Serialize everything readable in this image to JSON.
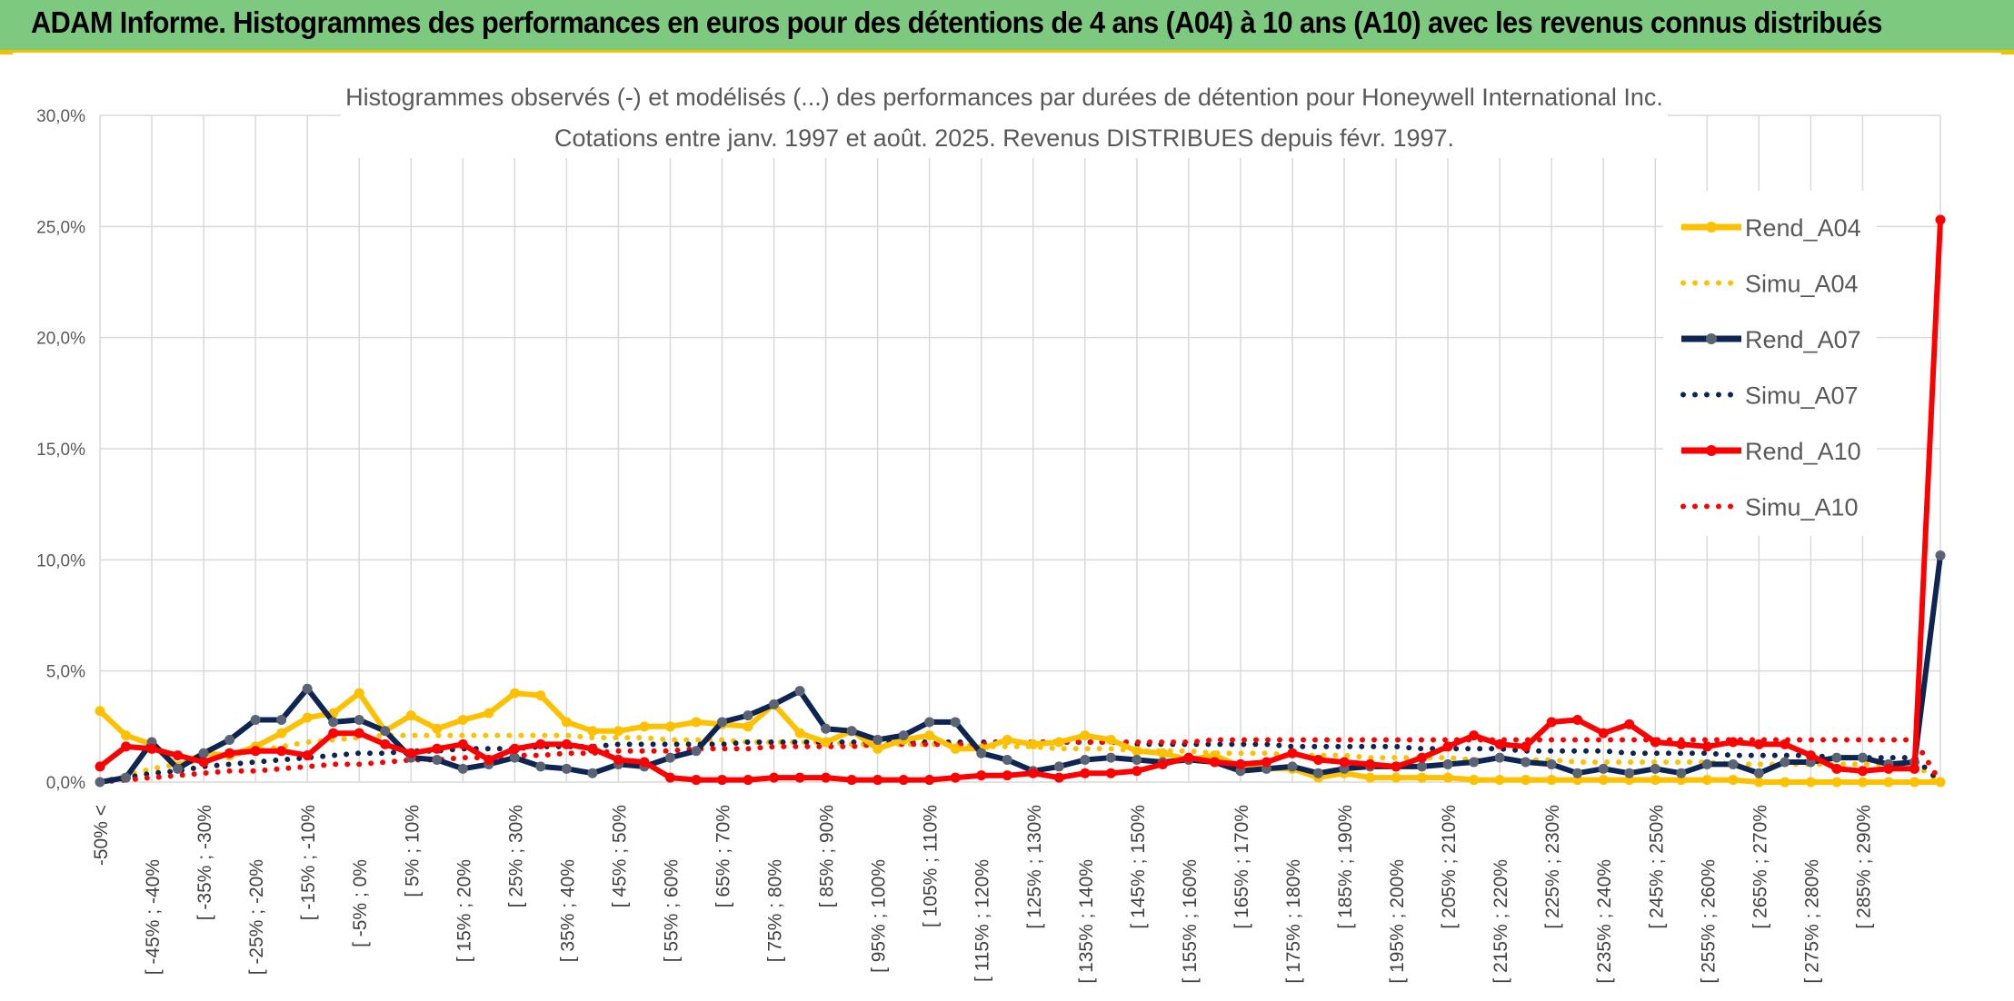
{
  "header": {
    "title": "ADAM Informe. Histogrammes des performances en euros pour des détentions de 4 ans (A04) à 10 ans (A10) avec les revenus connus distribués"
  },
  "colors": {
    "banner": "#7dc97f",
    "accent": "#f2c200",
    "A04": "#ffc000",
    "A07": "#0e2452",
    "A10": "#ff0000",
    "grid": "#d9d9d9",
    "text": "#595959"
  },
  "chart_data": {
    "type": "line",
    "title_line1": "Histogrammes observés (-) et modélisés (...) des performances par durées de détention pour Honeywell International Inc.",
    "title_line2": "Cotations entre janv. 1997 et août. 2025. Revenus DISTRIBUES depuis févr. 1997.",
    "ylim": [
      0,
      30
    ],
    "y_ticks": [
      "0,0%",
      "5,0%",
      "10,0%",
      "15,0%",
      "20,0%",
      "25,0%",
      "30,0%"
    ],
    "grid": true,
    "legend_position": "right",
    "x_tick_labels": [
      "-50% <",
      "[ -45% ; -40%",
      "[ -35% ; -30%",
      "[ -25% ; -20%",
      "[ -15% ; -10%",
      "[ -5% ; 0%",
      "[ 5% ; 10%",
      "[ 15% ; 20%",
      "[ 25% ; 30%",
      "[ 35% ; 40%",
      "[ 45% ; 50%",
      "[ 55% ; 60%",
      "[ 65% ; 70%",
      "[ 75% ; 80%",
      "[ 85% ; 90%",
      "[ 95% ; 100%",
      "[ 105% ; 110%",
      "[ 115% ; 120%",
      "[ 125% ; 130%",
      "[ 135% ; 140%",
      "[ 145% ; 150%",
      "[ 155% ; 160%",
      "[ 165% ; 170%",
      "[ 175% ; 180%",
      "[ 185% ; 190%",
      "[ 195% ; 200%",
      "[ 205% ; 210%",
      "[ 215% ; 220%",
      "[ 225% ; 230%",
      "[ 235% ; 240%",
      "[ 245% ; 250%",
      "[ 255% ; 260%",
      "[ 265% ; 270%",
      "[ 275% ; 280%",
      "[ 285% ; 290%"
    ],
    "series": [
      {
        "name": "Rend_A04",
        "style": "solid",
        "color": "#ffc000",
        "values": [
          3.2,
          2.1,
          1.7,
          0.7,
          1.3,
          1.2,
          1.6,
          2.2,
          2.9,
          3.1,
          4.0,
          2.3,
          3.0,
          2.4,
          2.8,
          3.1,
          4.0,
          3.9,
          2.7,
          2.3,
          2.3,
          2.5,
          2.5,
          2.7,
          2.6,
          2.5,
          3.5,
          2.2,
          1.8,
          2.3,
          1.5,
          1.9,
          2.1,
          1.5,
          1.5,
          1.9,
          1.7,
          1.8,
          2.1,
          1.9,
          1.4,
          1.3,
          1.0,
          1.2,
          0.7,
          0.6,
          0.6,
          0.2,
          0.4,
          0.2,
          0.2,
          0.2,
          0.2,
          0.1,
          0.1,
          0.1,
          0.1,
          0.1,
          0.1,
          0.1,
          0.1,
          0.1,
          0.1,
          0.1,
          0.0,
          0.0,
          0.0,
          0.0,
          0.0,
          0.0,
          0.0,
          0.0
        ]
      },
      {
        "name": "Simu_A04",
        "style": "dotted",
        "color": "#ffc000",
        "values": [
          0.0,
          0.3,
          0.6,
          0.8,
          1.0,
          1.2,
          1.4,
          1.6,
          1.8,
          1.9,
          2.0,
          2.1,
          2.1,
          2.1,
          2.1,
          2.1,
          2.1,
          2.1,
          2.1,
          2.0,
          2.0,
          2.0,
          1.9,
          1.9,
          1.9,
          1.8,
          1.8,
          1.8,
          1.8,
          1.7,
          1.7,
          1.7,
          1.7,
          1.7,
          1.6,
          1.6,
          1.6,
          1.5,
          1.5,
          1.5,
          1.4,
          1.4,
          1.4,
          1.3,
          1.3,
          1.3,
          1.2,
          1.2,
          1.2,
          1.1,
          1.1,
          1.1,
          1.1,
          1.0,
          1.0,
          1.0,
          1.0,
          0.9,
          0.9,
          0.9,
          0.9,
          0.9,
          0.9,
          0.8,
          0.8,
          0.8,
          0.8,
          0.8,
          0.8,
          0.8,
          0.8,
          0.0
        ]
      },
      {
        "name": "Rend_A07",
        "style": "solid",
        "color": "#0e2452",
        "values": [
          0.0,
          0.2,
          1.8,
          0.6,
          1.3,
          1.9,
          2.8,
          2.8,
          4.2,
          2.7,
          2.8,
          2.3,
          1.1,
          1.0,
          0.6,
          0.8,
          1.1,
          0.7,
          0.6,
          0.4,
          0.8,
          0.7,
          1.1,
          1.4,
          2.7,
          3.0,
          3.5,
          4.1,
          2.4,
          2.3,
          1.9,
          2.1,
          2.7,
          2.7,
          1.3,
          1.0,
          0.5,
          0.7,
          1.0,
          1.1,
          1.0,
          0.9,
          1.0,
          0.9,
          0.5,
          0.6,
          0.7,
          0.4,
          0.6,
          0.7,
          0.7,
          0.7,
          0.8,
          0.9,
          1.1,
          0.9,
          0.8,
          0.4,
          0.6,
          0.4,
          0.6,
          0.4,
          0.8,
          0.8,
          0.4,
          0.9,
          0.9,
          1.1,
          1.1,
          0.8,
          0.9,
          10.2
        ]
      },
      {
        "name": "Simu_A07",
        "style": "dotted",
        "color": "#0e2452",
        "values": [
          0.0,
          0.2,
          0.4,
          0.5,
          0.7,
          0.8,
          0.9,
          1.0,
          1.1,
          1.2,
          1.3,
          1.3,
          1.4,
          1.4,
          1.5,
          1.5,
          1.5,
          1.6,
          1.6,
          1.6,
          1.7,
          1.7,
          1.7,
          1.7,
          1.7,
          1.8,
          1.8,
          1.8,
          1.8,
          1.8,
          1.8,
          1.8,
          1.8,
          1.8,
          1.8,
          1.8,
          1.8,
          1.8,
          1.8,
          1.8,
          1.7,
          1.7,
          1.7,
          1.7,
          1.7,
          1.7,
          1.6,
          1.6,
          1.6,
          1.6,
          1.6,
          1.5,
          1.5,
          1.5,
          1.5,
          1.4,
          1.4,
          1.4,
          1.4,
          1.3,
          1.3,
          1.3,
          1.3,
          1.2,
          1.2,
          1.2,
          1.2,
          1.1,
          1.1,
          1.1,
          1.1,
          0.0
        ]
      },
      {
        "name": "Rend_A10",
        "style": "solid",
        "color": "#ff0000",
        "values": [
          0.7,
          1.6,
          1.5,
          1.2,
          0.9,
          1.3,
          1.4,
          1.4,
          1.2,
          2.2,
          2.2,
          1.7,
          1.3,
          1.5,
          1.7,
          1.0,
          1.5,
          1.7,
          1.7,
          1.5,
          1.0,
          0.9,
          0.2,
          0.1,
          0.1,
          0.1,
          0.2,
          0.2,
          0.2,
          0.1,
          0.1,
          0.1,
          0.1,
          0.2,
          0.3,
          0.3,
          0.4,
          0.2,
          0.4,
          0.4,
          0.5,
          0.8,
          1.1,
          0.9,
          0.8,
          0.9,
          1.3,
          1.0,
          0.9,
          0.8,
          0.7,
          1.1,
          1.6,
          2.1,
          1.7,
          1.6,
          2.7,
          2.8,
          2.2,
          2.6,
          1.8,
          1.7,
          1.6,
          1.8,
          1.7,
          1.7,
          1.2,
          0.6,
          0.5,
          0.6,
          0.6,
          25.3
        ]
      },
      {
        "name": "Simu_A10",
        "style": "dotted",
        "color": "#ff0000",
        "values": [
          0.0,
          0.1,
          0.2,
          0.3,
          0.4,
          0.5,
          0.5,
          0.6,
          0.7,
          0.8,
          0.8,
          0.9,
          1.0,
          1.0,
          1.1,
          1.1,
          1.2,
          1.2,
          1.3,
          1.3,
          1.4,
          1.4,
          1.4,
          1.5,
          1.5,
          1.5,
          1.6,
          1.6,
          1.6,
          1.6,
          1.7,
          1.7,
          1.7,
          1.7,
          1.7,
          1.8,
          1.8,
          1.8,
          1.8,
          1.8,
          1.8,
          1.8,
          1.8,
          1.9,
          1.9,
          1.9,
          1.9,
          1.9,
          1.9,
          1.9,
          1.9,
          1.9,
          1.9,
          1.9,
          1.9,
          1.9,
          1.9,
          1.9,
          1.9,
          1.9,
          1.9,
          1.9,
          1.9,
          1.9,
          1.9,
          1.9,
          1.9,
          1.9,
          1.9,
          1.9,
          1.9,
          0.0
        ]
      }
    ]
  }
}
